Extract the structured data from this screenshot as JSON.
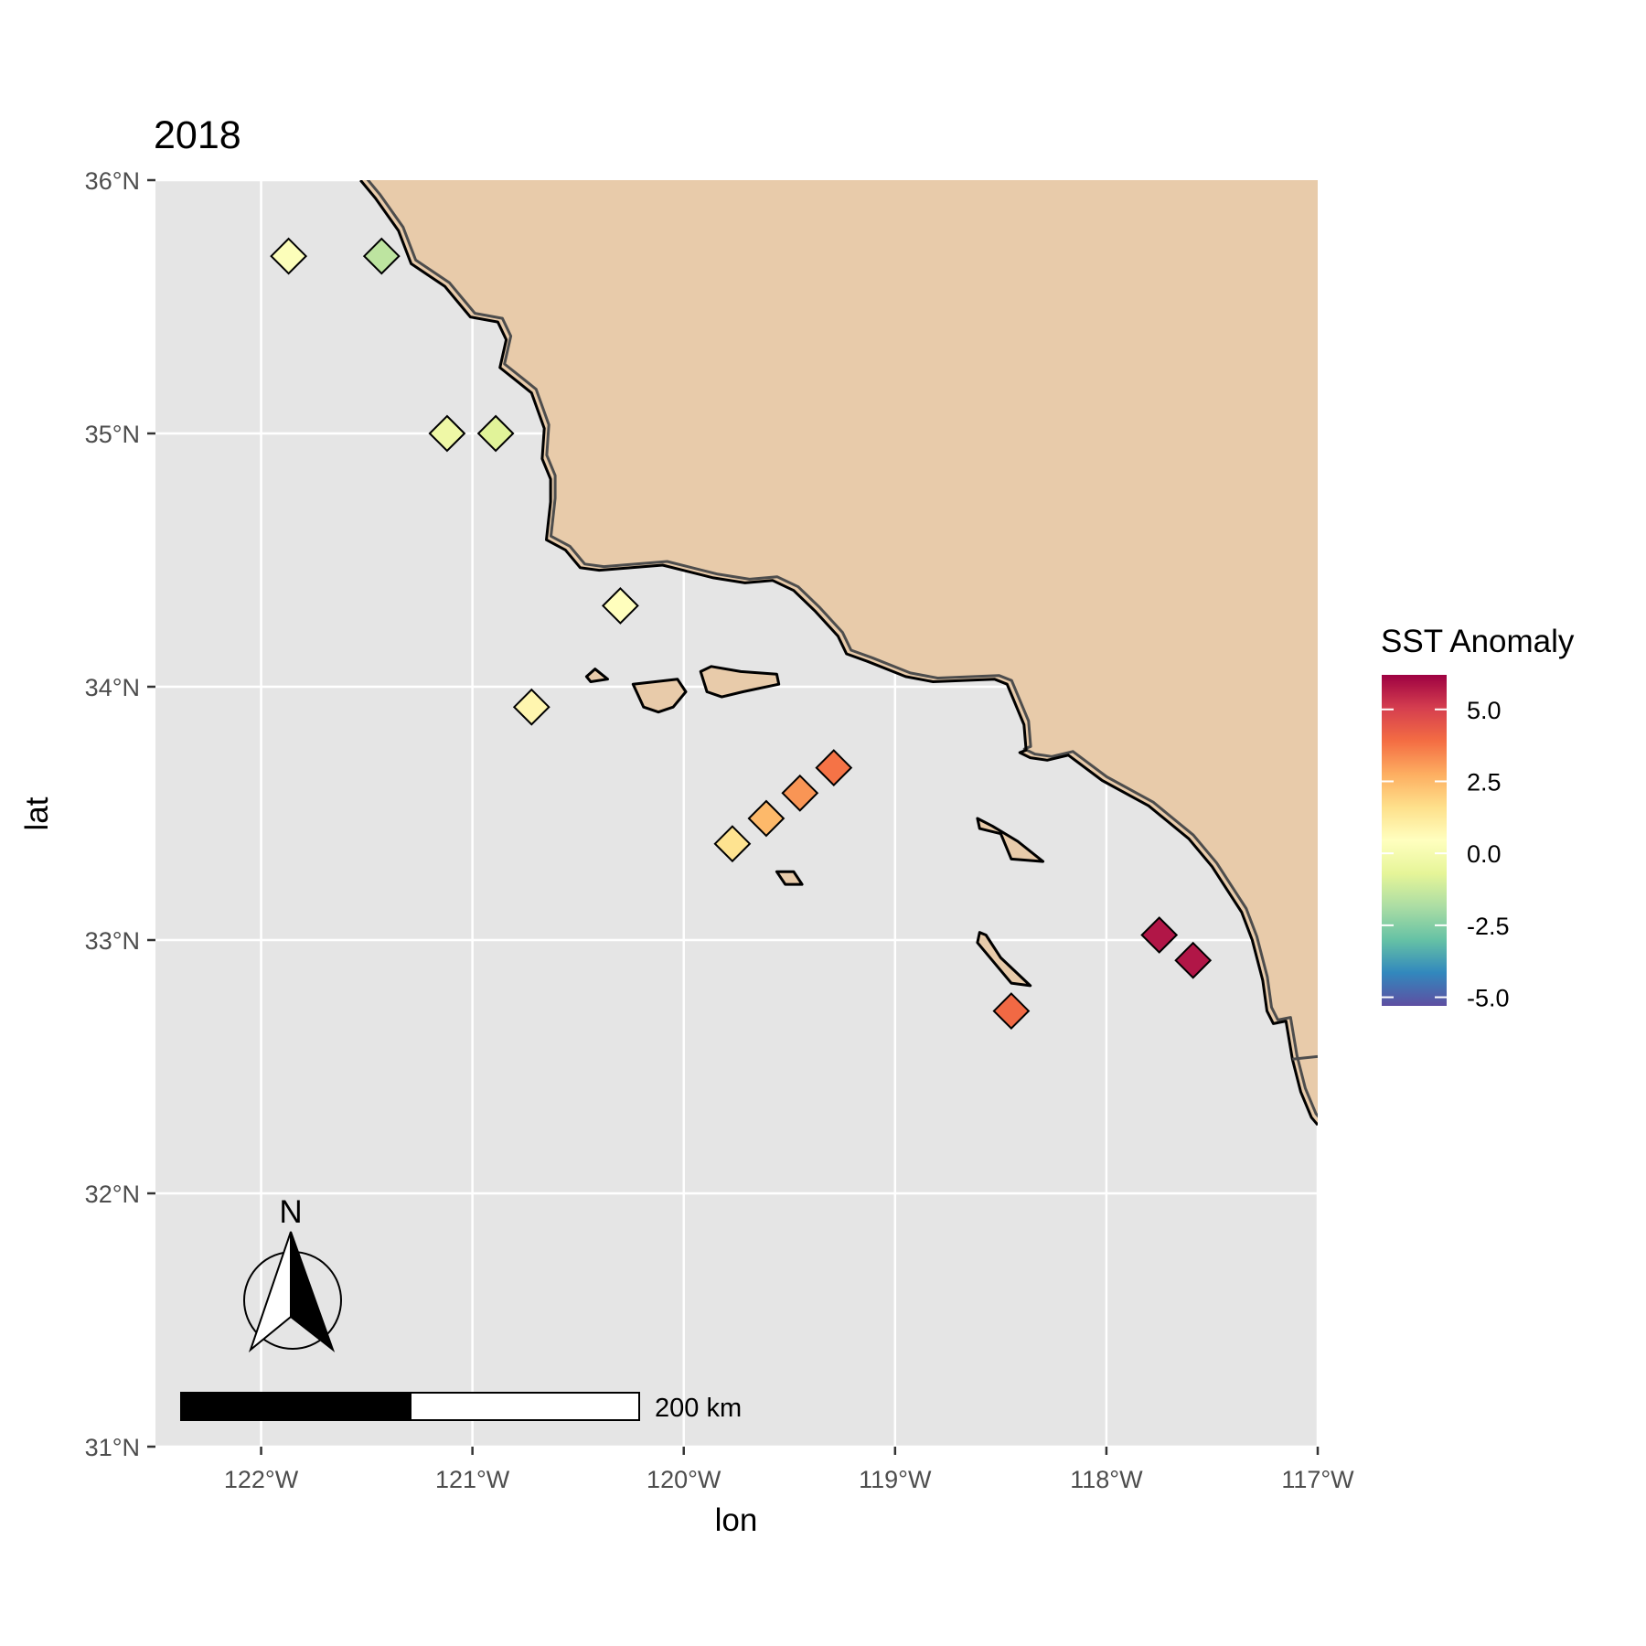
{
  "chart_data": {
    "type": "scatter",
    "title": "2018",
    "xlabel": "lon",
    "ylabel": "lat",
    "xlim": [
      -122.5,
      -117.0
    ],
    "ylim": [
      31.0,
      36.0
    ],
    "x_ticks": [
      -122,
      -121,
      -120,
      -119,
      -118,
      -117
    ],
    "x_tick_labels": [
      "122°W",
      "121°W",
      "120°W",
      "119°W",
      "118°W",
      "117°W"
    ],
    "y_ticks": [
      31,
      32,
      33,
      34,
      35,
      36
    ],
    "y_tick_labels": [
      "31°N",
      "32°N",
      "33°N",
      "34°N",
      "35°N",
      "36°N"
    ],
    "grid": true,
    "marker": "diamond",
    "points": [
      {
        "lon": -121.87,
        "lat": 35.7,
        "value": 0.3
      },
      {
        "lon": -121.43,
        "lat": 35.7,
        "value": -1.5
      },
      {
        "lon": -121.12,
        "lat": 35.0,
        "value": -0.3
      },
      {
        "lon": -120.89,
        "lat": 35.0,
        "value": -0.8
      },
      {
        "lon": -120.3,
        "lat": 34.32,
        "value": 0.5
      },
      {
        "lon": -120.72,
        "lat": 33.92,
        "value": 0.8
      },
      {
        "lon": -119.77,
        "lat": 33.38,
        "value": 1.5
      },
      {
        "lon": -119.61,
        "lat": 33.48,
        "value": 2.5
      },
      {
        "lon": -119.45,
        "lat": 33.58,
        "value": 3.2
      },
      {
        "lon": -119.29,
        "lat": 33.68,
        "value": 3.8
      },
      {
        "lon": -118.45,
        "lat": 32.72,
        "value": 4.0
      },
      {
        "lon": -117.75,
        "lat": 33.02,
        "value": 5.8
      },
      {
        "lon": -117.59,
        "lat": 32.92,
        "value": 5.8
      }
    ],
    "legend": {
      "title": "SST Anomaly",
      "position": "right",
      "range": [
        -5.3,
        6.2
      ],
      "breaks": [
        5.0,
        2.5,
        0.0,
        -2.5,
        -5.0
      ],
      "labels": [
        "5.0",
        "2.5",
        "0.0",
        "-2.5",
        "-5.0"
      ],
      "palette": [
        "#5e4fa2",
        "#3288bd",
        "#66c2a5",
        "#abdda4",
        "#e6f598",
        "#ffffbf",
        "#fee08b",
        "#fdae61",
        "#f46d43",
        "#d53e4f",
        "#9e0142"
      ]
    },
    "coastline": [
      [
        -121.53,
        36.0
      ],
      [
        -121.46,
        35.93
      ],
      [
        -121.35,
        35.8
      ],
      [
        -121.29,
        35.67
      ],
      [
        -121.13,
        35.58
      ],
      [
        -121.01,
        35.46
      ],
      [
        -120.88,
        35.44
      ],
      [
        -120.84,
        35.37
      ],
      [
        -120.87,
        35.26
      ],
      [
        -120.78,
        35.2
      ],
      [
        -120.72,
        35.16
      ],
      [
        -120.66,
        35.02
      ],
      [
        -120.67,
        34.9
      ],
      [
        -120.63,
        34.82
      ],
      [
        -120.63,
        34.73
      ],
      [
        -120.65,
        34.58
      ],
      [
        -120.56,
        34.54
      ],
      [
        -120.49,
        34.47
      ],
      [
        -120.4,
        34.46
      ],
      [
        -120.1,
        34.48
      ],
      [
        -119.86,
        34.43
      ],
      [
        -119.71,
        34.41
      ],
      [
        -119.58,
        34.42
      ],
      [
        -119.48,
        34.38
      ],
      [
        -119.38,
        34.3
      ],
      [
        -119.27,
        34.2
      ],
      [
        -119.23,
        34.13
      ],
      [
        -119.13,
        34.1
      ],
      [
        -118.95,
        34.04
      ],
      [
        -118.82,
        34.02
      ],
      [
        -118.53,
        34.03
      ],
      [
        -118.47,
        34.01
      ],
      [
        -118.39,
        33.85
      ],
      [
        -118.38,
        33.75
      ],
      [
        -118.41,
        33.74
      ],
      [
        -118.36,
        33.72
      ],
      [
        -118.28,
        33.71
      ],
      [
        -118.18,
        33.73
      ],
      [
        -118.02,
        33.63
      ],
      [
        -117.8,
        33.53
      ],
      [
        -117.61,
        33.4
      ],
      [
        -117.5,
        33.29
      ],
      [
        -117.43,
        33.2
      ],
      [
        -117.36,
        33.11
      ],
      [
        -117.31,
        33.0
      ],
      [
        -117.26,
        32.84
      ],
      [
        -117.24,
        32.72
      ],
      [
        -117.21,
        32.67
      ],
      [
        -117.15,
        32.68
      ],
      [
        -117.12,
        32.53
      ],
      [
        -117.08,
        32.4
      ],
      [
        -117.03,
        32.3
      ],
      [
        -117.0,
        32.27
      ]
    ],
    "border": [
      [
        -117.12,
        32.53
      ],
      [
        -117.0,
        32.54
      ]
    ],
    "islands": [
      [
        [
          -120.46,
          34.04
        ],
        [
          -120.42,
          34.07
        ],
        [
          -120.36,
          34.03
        ],
        [
          -120.44,
          34.02
        ],
        [
          -120.46,
          34.04
        ]
      ],
      [
        [
          -120.24,
          34.01
        ],
        [
          -120.03,
          34.03
        ],
        [
          -119.99,
          33.98
        ],
        [
          -120.05,
          33.92
        ],
        [
          -120.12,
          33.9
        ],
        [
          -120.19,
          33.92
        ],
        [
          -120.24,
          34.01
        ]
      ],
      [
        [
          -119.92,
          34.06
        ],
        [
          -119.87,
          34.08
        ],
        [
          -119.73,
          34.06
        ],
        [
          -119.56,
          34.05
        ],
        [
          -119.55,
          34.01
        ],
        [
          -119.72,
          33.98
        ],
        [
          -119.82,
          33.96
        ],
        [
          -119.89,
          33.98
        ],
        [
          -119.92,
          34.06
        ]
      ],
      [
        [
          -119.56,
          33.27
        ],
        [
          -119.48,
          33.27
        ],
        [
          -119.44,
          33.22
        ],
        [
          -119.52,
          33.22
        ],
        [
          -119.56,
          33.27
        ]
      ],
      [
        [
          -118.61,
          33.48
        ],
        [
          -118.54,
          33.45
        ],
        [
          -118.42,
          33.39
        ],
        [
          -118.3,
          33.31
        ],
        [
          -118.45,
          33.32
        ],
        [
          -118.5,
          33.42
        ],
        [
          -118.6,
          33.44
        ],
        [
          -118.61,
          33.48
        ]
      ],
      [
        [
          -118.6,
          33.03
        ],
        [
          -118.57,
          33.02
        ],
        [
          -118.5,
          32.93
        ],
        [
          -118.36,
          32.82
        ],
        [
          -118.45,
          32.83
        ],
        [
          -118.54,
          32.92
        ],
        [
          -118.61,
          32.99
        ],
        [
          -118.6,
          33.03
        ]
      ]
    ],
    "scale_bar": {
      "label": "200 km"
    },
    "north_arrow": {
      "label": "N"
    }
  },
  "colors": {
    "panel_background": "#e5e5e5",
    "grid": "#ffffff",
    "land": "#e8cbaa",
    "coast_outline": "#000000",
    "coast_shadow": "#4d4d4d"
  }
}
